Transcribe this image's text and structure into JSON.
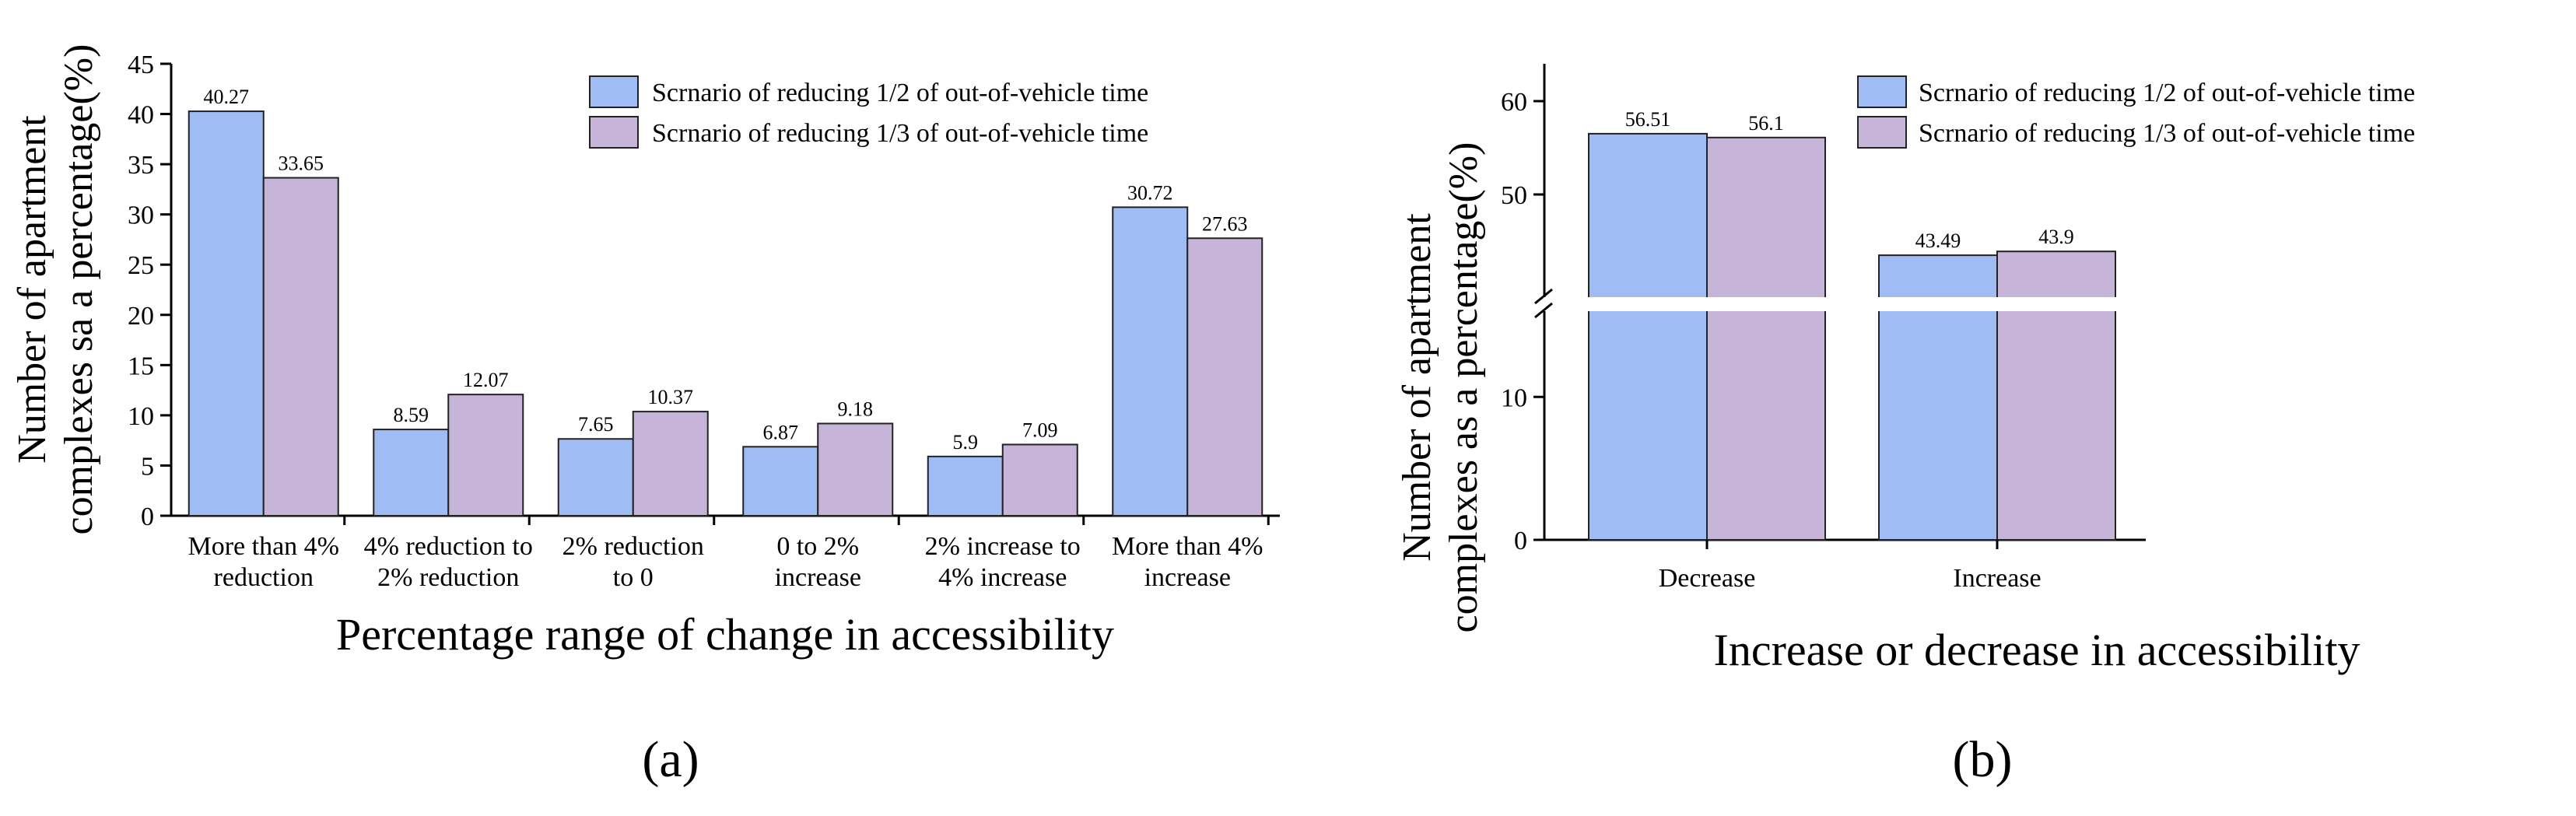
{
  "chart_data": [
    {
      "type": "bar",
      "panel_label": "(a)",
      "xlabel": "Percentage range of change in accessibility",
      "ylabel_lines": [
        "Number of apartment",
        "complexes sa a percentage(%)"
      ],
      "categories": [
        [
          "More than 4%",
          "reduction"
        ],
        [
          "4% reduction to",
          "2% reduction"
        ],
        [
          "2% reduction",
          "to 0"
        ],
        [
          "0 to 2%",
          "increase"
        ],
        [
          "2% increase to",
          "4% increase"
        ],
        [
          "More than 4%",
          "increase"
        ]
      ],
      "series": [
        {
          "name": "Scrnario of reducing 1/2 of out-of-vehicle time",
          "color": "#a0bcf5",
          "values": [
            40.27,
            8.59,
            7.65,
            6.87,
            5.9,
            30.72
          ],
          "labels": [
            "40.27",
            "8.59",
            "7.65",
            "6.87",
            "5.9",
            "30.72"
          ]
        },
        {
          "name": "Scrnario of reducing 1/3 of out-of-vehicle time",
          "color": "#c6b4d9",
          "values": [
            33.65,
            12.07,
            10.37,
            9.18,
            7.09,
            27.63
          ],
          "labels": [
            "33.65",
            "12.07",
            "10.37",
            "9.18",
            "7.09",
            "27.63"
          ]
        }
      ],
      "ylim": [
        0,
        45
      ],
      "yticks": [
        "0",
        "5",
        "10",
        "15",
        "20",
        "25",
        "30",
        "35",
        "40",
        "45"
      ],
      "legend": "top-right"
    },
    {
      "type": "bar",
      "panel_label": "(b)",
      "xlabel": "Increase or decrease in accessibility",
      "ylabel_lines": [
        "Number of apartment",
        "complexes as a percentage(%)"
      ],
      "categories": [
        [
          "Decrease"
        ],
        [
          "Increase"
        ]
      ],
      "series": [
        {
          "name": "Scrnario of reducing 1/2 of out-of-vehicle time",
          "color": "#a0bcf5",
          "values": [
            56.51,
            43.49
          ],
          "labels": [
            "56.51",
            "43.49"
          ]
        },
        {
          "name": "Scrnario of reducing 1/3 of out-of-vehicle time",
          "color": "#c6b4d9",
          "values": [
            56.1,
            43.9
          ],
          "labels": [
            "56.1",
            "43.9"
          ]
        }
      ],
      "yticks": [
        "0",
        "10",
        "50",
        "60"
      ],
      "axis_break": {
        "lower": [
          0,
          16
        ],
        "upper": [
          39,
          64
        ]
      },
      "legend": "top-right"
    }
  ]
}
